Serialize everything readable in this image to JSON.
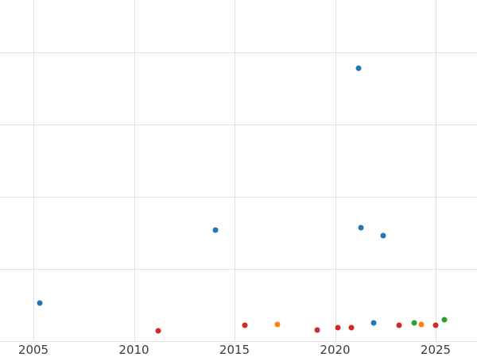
{
  "chart_data": {
    "type": "scatter",
    "title": "",
    "xlabel": "",
    "ylabel": "",
    "grid": true,
    "legend": "none",
    "x_ticks": [
      2005,
      2010,
      2015,
      2020,
      2025
    ],
    "x_tick_labels": [
      "2005",
      "2010",
      "2015",
      "2020",
      "2025"
    ],
    "xlim": [
      2003.3,
      2027.1
    ],
    "ylim": [
      0,
      4.7
    ],
    "y_tick_labels_visible": false,
    "y_unit_note": "y values estimated in horizontal-gridline units (0 = bottom axis, 1 per gridline); y tick labels are cropped out of the screenshot",
    "y_gridline_units": [
      1,
      2,
      3,
      4
    ],
    "series": [
      {
        "name": "blue",
        "color": "#1f77b4",
        "points": [
          [
            2005.3,
            0.53
          ],
          [
            2014.05,
            1.54
          ],
          [
            2021.15,
            3.78
          ],
          [
            2021.3,
            1.57
          ],
          [
            2021.9,
            0.25
          ],
          [
            2022.4,
            1.46
          ]
        ]
      },
      {
        "name": "red",
        "color": "#d62728",
        "points": [
          [
            2011.2,
            0.14
          ],
          [
            2015.5,
            0.22
          ],
          [
            2019.1,
            0.15
          ],
          [
            2020.15,
            0.19
          ],
          [
            2020.8,
            0.19
          ],
          [
            2023.2,
            0.22
          ],
          [
            2025.0,
            0.22
          ]
        ]
      },
      {
        "name": "orange",
        "color": "#ff7f0e",
        "points": [
          [
            2017.15,
            0.23
          ],
          [
            2024.3,
            0.23
          ]
        ]
      },
      {
        "name": "green",
        "color": "#2ca02c",
        "points": [
          [
            2023.95,
            0.25
          ],
          [
            2025.45,
            0.3
          ]
        ]
      }
    ]
  },
  "colors": {
    "background": "#ffffff",
    "gridline": "#e0e0e0",
    "tick_text": "#3b3b3b"
  }
}
